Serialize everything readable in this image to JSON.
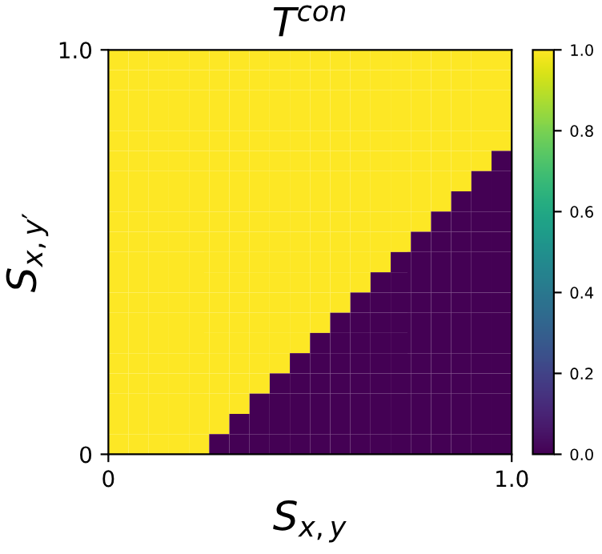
{
  "chart_data": {
    "type": "heatmap",
    "title": "T$^{con}$",
    "xlabel": "S$_{x,y}$",
    "ylabel": "S$_{x,y′}$",
    "x": [
      0.025,
      0.075,
      0.125,
      0.175,
      0.225,
      0.275,
      0.325,
      0.375,
      0.425,
      0.475,
      0.525,
      0.575,
      0.625,
      0.675,
      0.725,
      0.775,
      0.825,
      0.875,
      0.925,
      0.975
    ],
    "y": [
      0.975,
      0.925,
      0.875,
      0.825,
      0.775,
      0.725,
      0.675,
      0.625,
      0.575,
      0.525,
      0.475,
      0.425,
      0.375,
      0.325,
      0.275,
      0.225,
      0.175,
      0.125,
      0.075,
      0.025
    ],
    "xlim": [
      0,
      1
    ],
    "xticks": [
      0,
      {
        "value": 1,
        "label": "1.0"
      }
    ],
    "ylim": [
      0,
      1
    ],
    "yticks": [
      0,
      {
        "value": 1,
        "label": "1.0"
      }
    ],
    "clim": [
      0,
      1
    ],
    "cticks": [
      {
        "value": 0,
        "label": "0.0"
      },
      0.2,
      0.4,
      0.6,
      0.8,
      {
        "value": 1,
        "label": "1.0"
      }
    ],
    "cells": [
      [
        1,
        1,
        1,
        1,
        1,
        1,
        1,
        1,
        1,
        1,
        1,
        1,
        1,
        1,
        1,
        1,
        1,
        1,
        1,
        1
      ],
      [
        1,
        1,
        1,
        1,
        1,
        1,
        1,
        1,
        1,
        1,
        1,
        1,
        1,
        1,
        1,
        1,
        1,
        1,
        1,
        1
      ],
      [
        1,
        1,
        1,
        1,
        1,
        1,
        1,
        1,
        1,
        1,
        1,
        1,
        1,
        1,
        1,
        1,
        1,
        1,
        1,
        1
      ],
      [
        1,
        1,
        1,
        1,
        1,
        1,
        1,
        1,
        1,
        1,
        1,
        1,
        1,
        1,
        1,
        1,
        1,
        1,
        1,
        1
      ],
      [
        1,
        1,
        1,
        1,
        1,
        1,
        1,
        1,
        1,
        1,
        1,
        1,
        1,
        1,
        1,
        1,
        1,
        1,
        1,
        1
      ],
      [
        1,
        1,
        1,
        1,
        1,
        1,
        1,
        1,
        1,
        1,
        1,
        1,
        1,
        1,
        1,
        1,
        1,
        1,
        1,
        0
      ],
      [
        1,
        1,
        1,
        1,
        1,
        1,
        1,
        1,
        1,
        1,
        1,
        1,
        1,
        1,
        1,
        1,
        1,
        1,
        0,
        0
      ],
      [
        1,
        1,
        1,
        1,
        1,
        1,
        1,
        1,
        1,
        1,
        1,
        1,
        1,
        1,
        1,
        1,
        1,
        0,
        0,
        0
      ],
      [
        1,
        1,
        1,
        1,
        1,
        1,
        1,
        1,
        1,
        1,
        1,
        1,
        1,
        1,
        1,
        1,
        0,
        0,
        0,
        0
      ],
      [
        1,
        1,
        1,
        1,
        1,
        1,
        1,
        1,
        1,
        1,
        1,
        1,
        1,
        1,
        1,
        0,
        0,
        0,
        0,
        0
      ],
      [
        1,
        1,
        1,
        1,
        1,
        1,
        1,
        1,
        1,
        1,
        1,
        1,
        1,
        1,
        0,
        0,
        0,
        0,
        0,
        0
      ],
      [
        1,
        1,
        1,
        1,
        1,
        1,
        1,
        1,
        1,
        1,
        1,
        1,
        1,
        0,
        0,
        0,
        0,
        0,
        0,
        0
      ],
      [
        1,
        1,
        1,
        1,
        1,
        1,
        1,
        1,
        1,
        1,
        1,
        1,
        0,
        0,
        0,
        0,
        0,
        0,
        0,
        0
      ],
      [
        1,
        1,
        1,
        1,
        1,
        1,
        1,
        1,
        1,
        1,
        1,
        0,
        0,
        0,
        0,
        0,
        0,
        0,
        0,
        0
      ],
      [
        1,
        1,
        1,
        1,
        1,
        1,
        1,
        1,
        1,
        1,
        0,
        0,
        0,
        0,
        0,
        0,
        0,
        0,
        0,
        0
      ],
      [
        1,
        1,
        1,
        1,
        1,
        1,
        1,
        1,
        1,
        0,
        0,
        0,
        0,
        0,
        0,
        0,
        0,
        0,
        0,
        0
      ],
      [
        1,
        1,
        1,
        1,
        1,
        1,
        1,
        1,
        0,
        0,
        0,
        0,
        0,
        0,
        0,
        0,
        0,
        0,
        0,
        0
      ],
      [
        1,
        1,
        1,
        1,
        1,
        1,
        1,
        0,
        0,
        0,
        0,
        0,
        0,
        0,
        0,
        0,
        0,
        0,
        0,
        0
      ],
      [
        1,
        1,
        1,
        1,
        1,
        1,
        0,
        0,
        0,
        0,
        0,
        0,
        0,
        0,
        0,
        0,
        0,
        0,
        0,
        0
      ],
      [
        1,
        1,
        1,
        1,
        1,
        0,
        0,
        0,
        0,
        0,
        0,
        0,
        0,
        0,
        0,
        0,
        0,
        0,
        0,
        0
      ]
    ]
  }
}
